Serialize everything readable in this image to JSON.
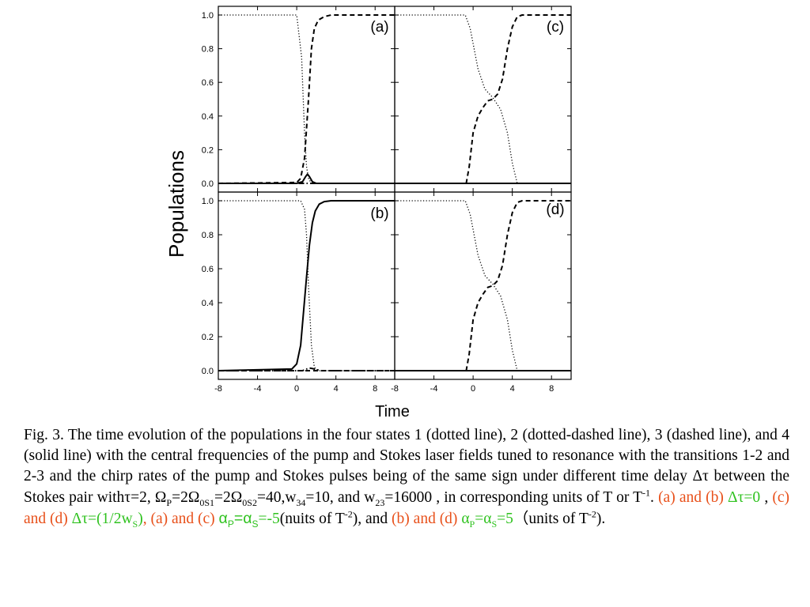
{
  "chart_data": {
    "type": "line",
    "ylabel": "Populations",
    "xlabel": "Time",
    "xlim": [
      -8,
      10
    ],
    "ylim": [
      0,
      1
    ],
    "x_ticks": [
      "-8",
      "-4",
      "0",
      "4",
      "8"
    ],
    "y_ticks": [
      "0.0",
      "0.2",
      "0.4",
      "0.6",
      "0.8",
      "1.0"
    ],
    "panels": [
      {
        "label": "(a)",
        "series": [
          {
            "style": "dotted",
            "x": [
              -8,
              0,
              0.5,
              0.8,
              1.0,
              1.2,
              1.5,
              2,
              10
            ],
            "values": [
              1.0,
              1.0,
              0.75,
              0.3,
              0.1,
              0.03,
              0.0,
              0.0,
              0.0
            ]
          },
          {
            "style": "dash-dot",
            "x": [
              -8,
              10
            ],
            "values": [
              0.0,
              0.0
            ]
          },
          {
            "style": "dashed",
            "x": [
              -8,
              0,
              0.4,
              0.8,
              1.2,
              1.5,
              1.8,
              2.2,
              2.8,
              3.5,
              10
            ],
            "values": [
              0.0,
              0.005,
              0.03,
              0.15,
              0.5,
              0.8,
              0.92,
              0.97,
              0.99,
              1.0,
              1.0
            ]
          },
          {
            "style": "solid",
            "x": [
              -8,
              0,
              0.6,
              0.9,
              1.1,
              1.3,
              1.6,
              2.0,
              10
            ],
            "values": [
              0.0,
              0.0,
              0.01,
              0.04,
              0.055,
              0.04,
              0.01,
              0.0,
              0.0
            ]
          }
        ]
      },
      {
        "label": "(c)",
        "series": [
          {
            "style": "dotted",
            "x": [
              -8,
              -0.8,
              -0.3,
              0.5,
              1.2,
              2.0,
              2.8,
              3.5,
              4.0,
              4.5,
              10
            ],
            "values": [
              1.0,
              1.0,
              0.92,
              0.68,
              0.56,
              0.51,
              0.44,
              0.3,
              0.12,
              0.0,
              0.0
            ]
          },
          {
            "style": "dash-dot",
            "x": [
              -8,
              10
            ],
            "values": [
              0.0,
              0.0
            ]
          },
          {
            "style": "dashed",
            "x": [
              -8,
              -0.7,
              -0.4,
              0.0,
              0.5,
              1.0,
              1.5,
              2.0,
              2.5,
              3.0,
              3.5,
              4.0,
              4.5,
              5.0,
              10
            ],
            "values": [
              0.0,
              0.0,
              0.1,
              0.3,
              0.4,
              0.45,
              0.49,
              0.5,
              0.53,
              0.62,
              0.8,
              0.93,
              0.99,
              1.0,
              1.0
            ]
          },
          {
            "style": "solid",
            "x": [
              -8,
              10
            ],
            "values": [
              0.0,
              0.0
            ]
          }
        ]
      },
      {
        "label": "(b)",
        "series": [
          {
            "style": "dotted",
            "x": [
              -8,
              0.4,
              0.8,
              1.0,
              1.2,
              1.5,
              1.8,
              2.2,
              10
            ],
            "values": [
              1.0,
              1.0,
              0.95,
              0.8,
              0.5,
              0.15,
              0.02,
              0.0,
              0.0
            ]
          },
          {
            "style": "dash-dot",
            "x": [
              -8,
              0.6,
              1.0,
              1.4,
              1.8,
              2.5,
              10
            ],
            "values": [
              0.0,
              0.0,
              0.01,
              0.015,
              0.01,
              0.0,
              0.0
            ]
          },
          {
            "style": "dashed",
            "x": [
              -8,
              10
            ],
            "values": [
              0.0,
              0.0
            ]
          },
          {
            "style": "solid",
            "x": [
              -8,
              -0.5,
              0,
              0.4,
              0.7,
              1.0,
              1.3,
              1.6,
              1.9,
              2.3,
              2.8,
              3.5,
              10
            ],
            "values": [
              0.0,
              0.01,
              0.04,
              0.15,
              0.35,
              0.55,
              0.74,
              0.87,
              0.94,
              0.98,
              0.995,
              1.0,
              1.0
            ]
          }
        ]
      },
      {
        "label": "(d)",
        "series": [
          {
            "style": "dotted",
            "x": [
              -8,
              -0.8,
              -0.3,
              0.5,
              1.2,
              2.0,
              2.8,
              3.5,
              4.0,
              4.5,
              10
            ],
            "values": [
              1.0,
              1.0,
              0.92,
              0.68,
              0.56,
              0.51,
              0.44,
              0.3,
              0.12,
              0.0,
              0.0
            ]
          },
          {
            "style": "dash-dot",
            "x": [
              -8,
              10
            ],
            "values": [
              0.0,
              0.0
            ]
          },
          {
            "style": "dashed",
            "x": [
              -8,
              -0.7,
              -0.4,
              0.0,
              0.5,
              1.0,
              1.5,
              2.0,
              2.5,
              3.0,
              3.5,
              4.0,
              4.5,
              5.0,
              10
            ],
            "values": [
              0.0,
              0.0,
              0.1,
              0.3,
              0.4,
              0.45,
              0.49,
              0.5,
              0.53,
              0.62,
              0.8,
              0.93,
              0.99,
              1.0,
              1.0
            ]
          },
          {
            "style": "solid",
            "x": [
              -8,
              10
            ],
            "values": [
              0.0,
              0.0
            ]
          }
        ]
      }
    ]
  },
  "caption": {
    "t1": "Fig. 3. The time evolution of the populations in the four states 1 (dotted line), 2 (dotted-dashed line), 3 (dashed line), and 4 (solid line) with the central frequencies of the pump and Stokes laser fields tuned to resonance with the transitions 1-2 and 2-3 and the chirp rates of the pump and Stokes pulses being of the same sign under different time delay Δτ between the Stokes pair withτ=2, Ω",
    "s_P": "P",
    "t2": "=2Ω",
    "s_0S1": "0S1",
    "t3": "=2Ω",
    "s_0S2": "0S2",
    "t4": "=40,w",
    "s_34": "34",
    "t5": "=10, and w",
    "s_23": "23",
    "t6": "=16000 , in corresponding units of T or T",
    "p_m1": "-1",
    "t7": ". ",
    "r1": "(a) and (b) ",
    "g1": "Δτ=0",
    "t8": " , ",
    "r2": "(c) and (d) ",
    "g2": "Δτ=(1/2w",
    "g2_sub": "S",
    "g2_end": ")",
    "r3": ", (a) and (c) ",
    "g3a": "α",
    "g3_subP": "P",
    "g3b": "=α",
    "g3_subS": "S",
    "g3c": "=-5",
    "t9": "(nuits of T",
    "p_m2a": "-2",
    "t10": "), and ",
    "r4": "(b) and (d) ",
    "g4a": "α",
    "g4_subP": "P",
    "g4b": "=α",
    "g4_subS": "S",
    "g4c": "=5",
    "t11": "（units of T",
    "p_m2b": "-2",
    "t12": ")."
  }
}
